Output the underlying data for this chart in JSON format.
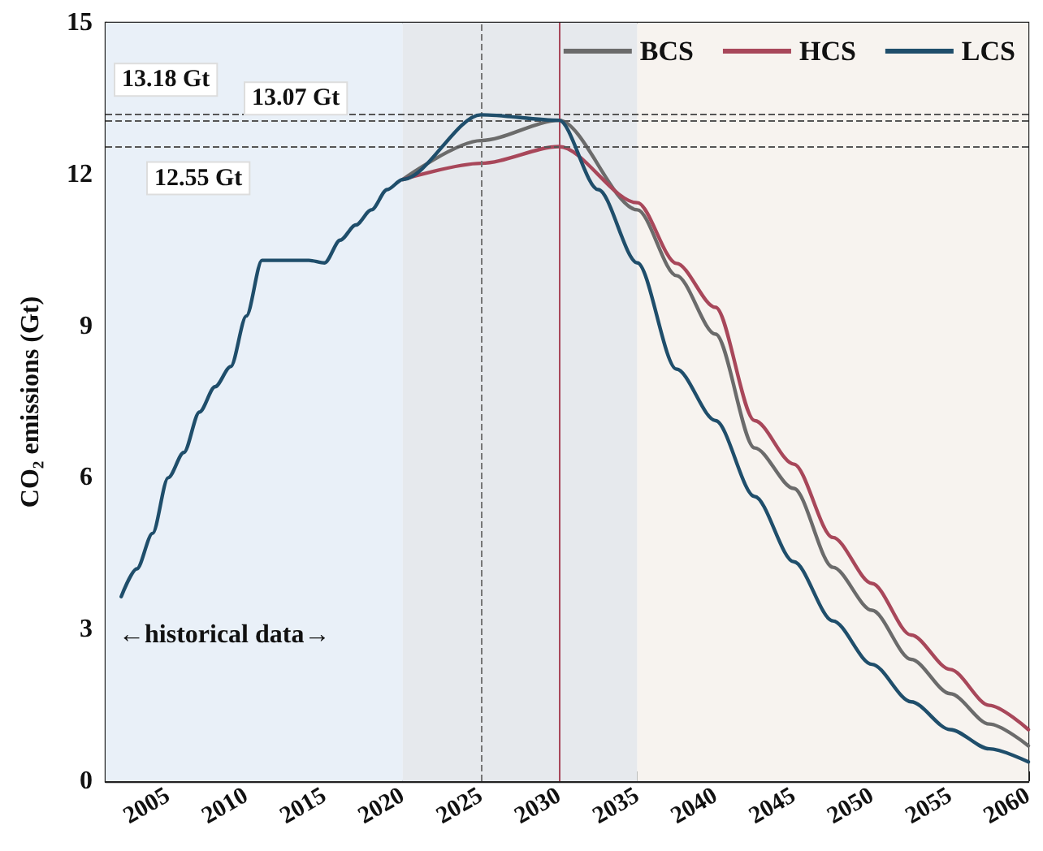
{
  "chart_data": {
    "type": "line",
    "ylabel": "CO₂ emissions (Gt)",
    "xlim": [
      2001,
      2060
    ],
    "xticks": [
      2005,
      2010,
      2015,
      2020,
      2025,
      2030,
      2035,
      2040,
      2045,
      2050,
      2055,
      2060
    ],
    "ylim": [
      0,
      15
    ],
    "yticks": [
      0,
      3,
      6,
      9,
      12,
      15
    ],
    "grid": false,
    "legend": "top right",
    "marker": "none",
    "line_style": "solid",
    "series": [
      {
        "name": "BCS",
        "color": "#6b6b6b",
        "x": [
          2020,
          2025,
          2030,
          2035,
          2037.5,
          2040,
          2042.5,
          2045,
          2047.5,
          2050,
          2052.5,
          2055,
          2057.5,
          2060
        ],
        "values": [
          11.9,
          12.67,
          13.07,
          11.3,
          10.0,
          8.84,
          6.59,
          5.79,
          4.23,
          3.38,
          2.41,
          1.73,
          1.13,
          0.7
        ]
      },
      {
        "name": "HCS",
        "color": "#a8475a",
        "x": [
          2020,
          2025,
          2030,
          2035,
          2037.5,
          2040,
          2042.5,
          2045,
          2047.5,
          2050,
          2052.5,
          2055,
          2057.5,
          2060
        ],
        "values": [
          11.9,
          12.22,
          12.55,
          11.44,
          10.24,
          9.37,
          7.13,
          6.27,
          4.82,
          3.91,
          2.89,
          2.21,
          1.5,
          1.02
        ]
      },
      {
        "name": "LCS",
        "color": "#1f4e6b",
        "x": [
          2002,
          2003,
          2004,
          2005,
          2006,
          2007,
          2008,
          2009,
          2010,
          2011,
          2012,
          2013,
          2014,
          2015,
          2016,
          2017,
          2018,
          2019,
          2020,
          2025,
          2030,
          2032.5,
          2035,
          2037.5,
          2040,
          2042.5,
          2045,
          2047.5,
          2050,
          2052.5,
          2055,
          2057.5,
          2060
        ],
        "values": [
          3.65,
          4.2,
          4.9,
          6.0,
          6.5,
          7.3,
          7.8,
          8.2,
          9.2,
          10.3,
          10.3,
          10.3,
          10.3,
          10.25,
          10.7,
          11.0,
          11.3,
          11.7,
          11.9,
          13.18,
          13.07,
          11.7,
          10.25,
          8.15,
          7.13,
          5.63,
          4.34,
          3.17,
          2.31,
          1.57,
          1.02,
          0.64,
          0.38
        ]
      }
    ],
    "ref_lines": [
      {
        "axis": "y",
        "value": 13.18,
        "label": "13.18 Gt",
        "color": "#555555",
        "line_style": "dashed"
      },
      {
        "axis": "y",
        "value": 13.07,
        "label": "13.07 Gt",
        "color": "#555555",
        "line_style": "dashed"
      },
      {
        "axis": "y",
        "value": 12.55,
        "label": "12.55 Gt",
        "color": "#555555",
        "line_style": "dashed"
      },
      {
        "axis": "x",
        "value": 2025,
        "color": "#777777",
        "line_style": "dashed"
      },
      {
        "axis": "x",
        "value": 2030,
        "color": "#a8475a",
        "line_style": "solid"
      }
    ],
    "bands": [
      {
        "axis": "x",
        "from": 2001,
        "to": 2020,
        "color": "#e9f0f8"
      },
      {
        "axis": "x",
        "from": 2020,
        "to": 2035,
        "color": "#e6e9ed"
      },
      {
        "axis": "x",
        "from": 2035,
        "to": 2060,
        "color": "#f7f3ef"
      }
    ],
    "annotations": [
      "←historical data→"
    ]
  }
}
